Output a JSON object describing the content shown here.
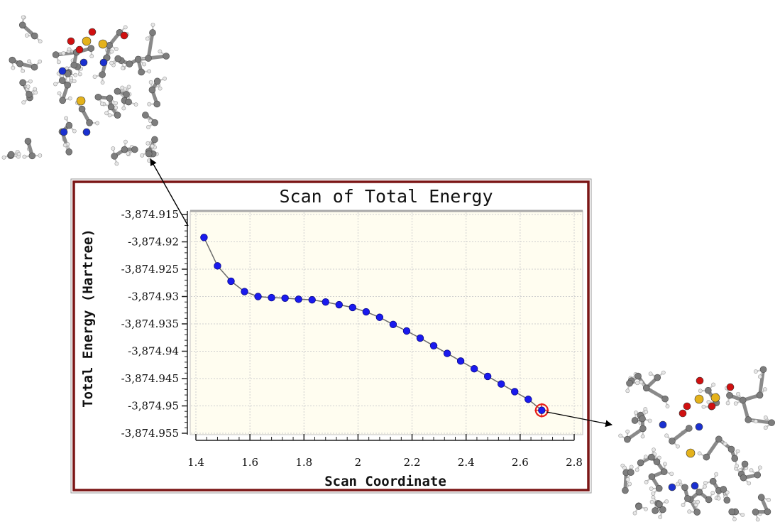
{
  "chart_data": {
    "type": "line",
    "title": "Scan of Total Energy",
    "xlabel": "Scan Coordinate",
    "ylabel": "Total Energy (Hartree)",
    "xlim": [
      1.4,
      2.8
    ],
    "ylim": [
      -3874.955,
      -3874.915
    ],
    "x_ticks": [
      "1.4",
      "1.6",
      "1.8",
      "2",
      "2.2",
      "2.4",
      "2.6",
      "2.8"
    ],
    "y_ticks": [
      "-3,874.915",
      "-3,874.92",
      "-3,874.925",
      "-3,874.93",
      "-3,874.935",
      "-3,874.94",
      "-3,874.945",
      "-3,874.95",
      "-3,874.955"
    ],
    "grid": true,
    "series": [
      {
        "x": [
          1.43,
          1.48,
          1.53,
          1.58,
          1.63,
          1.68,
          1.73,
          1.78,
          1.83,
          1.88,
          1.93,
          1.98,
          2.03,
          2.08,
          2.13,
          2.18,
          2.23,
          2.28,
          2.33,
          2.38,
          2.43,
          2.48,
          2.53,
          2.58,
          2.63,
          2.68
        ],
        "values": [
          -3874.9192,
          -3874.9244,
          -3874.9272,
          -3874.9291,
          -3874.93,
          -3874.9302,
          -3874.9303,
          -3874.9305,
          -3874.9306,
          -3874.931,
          -3874.9315,
          -3874.932,
          -3874.9328,
          -3874.9338,
          -3874.9351,
          -3874.9363,
          -3874.9376,
          -3874.939,
          -3874.9404,
          -3874.9418,
          -3874.9432,
          -3874.9446,
          -3874.946,
          -3874.9474,
          -3874.9488,
          -3874.9508
        ]
      }
    ],
    "highlighted_point": 25,
    "colors": {
      "marker": "#1a1aee",
      "line": "#6b6b6b",
      "highlight": "#e8201a",
      "frame": "#7b1616",
      "plot_background": "#fffdf0",
      "grid": "#cfcfcf"
    }
  }
}
